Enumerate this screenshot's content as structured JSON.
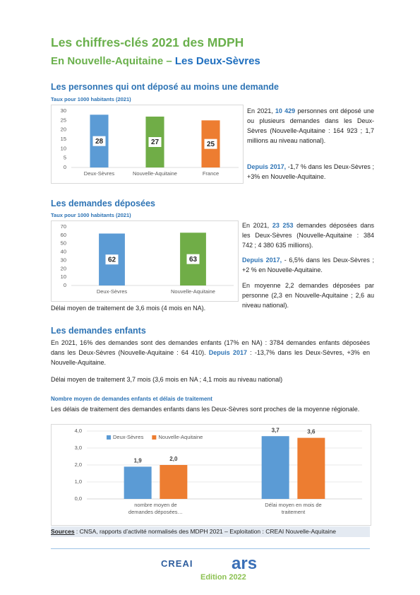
{
  "header": {
    "title": "Les chiffres-clés 2021 des MDPH",
    "subtitle": "En Nouvelle-Aquitaine –",
    "subtitle_highlight": "Les Deux-Sèvres"
  },
  "sections": [
    {
      "heading": "Les personnes qui ont déposé au moins une demande",
      "paragraphs": [
        [
          {
            "text": "En 2021, "
          },
          {
            "text": "10 429",
            "highlight": true
          },
          {
            "text": " personnes ont déposé une ou plusieurs demandes dans les Deux-Sèvres (Nouvelle-Aquitaine : 164 923 ; 1,7 millions au niveau national)."
          }
        ],
        [
          {
            "text": "Depuis 2017,",
            "highlight": true
          },
          {
            "text": " -1,7 % dans les Deux-Sèvres ; +3% en Nouvelle-Aquitaine."
          }
        ]
      ]
    },
    {
      "heading": "Les demandes déposées",
      "paragraphs": [
        [
          {
            "text": "En 2021, "
          },
          {
            "text": "23 253",
            "highlight": true
          },
          {
            "text": " demandes déposées dans les Deux-Sèvres (Nouvelle-Aquitaine : 384 742 ; 4 380 635 millions)."
          }
        ],
        [
          {
            "text": "Depuis 2017,",
            "highlight": true
          },
          {
            "text": " - 6,5% dans les Deux-Sèvres ; +2 % en Nouvelle-Aquitaine."
          }
        ],
        [
          {
            "text": "En moyenne 2,2 demandes déposées par personne (2,3 en Nouvelle-Aquitaine ; 2,6 au niveau national)."
          }
        ],
        [
          {
            "text": "Délai moyen de traitement de 3,6 mois (4 mois en NA)."
          }
        ]
      ]
    },
    {
      "heading": "Les demandes enfants",
      "paragraphs": [
        [
          {
            "text": "En 2021, 16% des demandes sont des demandes enfants (17% en NA) : 3784 demandes enfants déposées dans les Deux-Sèvres (Nouvelle-Aquitaine : 64 410). "
          },
          {
            "text": "Depuis 2017",
            "highlight": true
          },
          {
            "text": " : -13,7% dans les Deux-Sèvres, +3% en Nouvelle-Aquitaine."
          }
        ],
        [
          {
            "text": "Délai moyen de traitement 3,7 mois (3,6 mois en NA ; 4,1 mois au niveau national)"
          }
        ]
      ],
      "subheading": "Nombre moyen de demandes enfants et délais de traitement",
      "note": "Les délais de traitement des demandes enfants dans les Deux-Sèvres sont proches de la moyenne régionale."
    }
  ],
  "chart_data": [
    {
      "type": "bar",
      "title": "Taux pour 1000 habitants (2021)",
      "categories": [
        "Deux-Sèvres",
        "Nouvelle-Aquitaine",
        "France"
      ],
      "values": [
        28,
        27,
        25
      ],
      "colors": [
        "#5b9bd5",
        "#70ad47",
        "#ed7d31"
      ],
      "ylim": [
        0,
        30
      ],
      "yticks": [
        0,
        5,
        10,
        15,
        20,
        25,
        30
      ],
      "grid": false,
      "data_labels": "inside"
    },
    {
      "type": "bar",
      "title": "Taux pour 1000 habitants (2021)",
      "categories": [
        "Deux-Sèvres",
        "Nouvelle-Aquitaine"
      ],
      "values": [
        62,
        63
      ],
      "colors": [
        "#5b9bd5",
        "#70ad47"
      ],
      "ylim": [
        0,
        70
      ],
      "yticks": [
        0,
        10,
        20,
        30,
        40,
        50,
        60,
        70
      ],
      "grid": false,
      "data_labels": "inside"
    },
    {
      "type": "bar",
      "categories": [
        "nombre moyen de demandes déposées…",
        "Délai moyen en mois de traitement"
      ],
      "series": [
        {
          "name": "Deux-Sèvres",
          "color": "#5b9bd5",
          "values": [
            1.9,
            3.7
          ],
          "value_labels": [
            "1,9",
            "3,7"
          ]
        },
        {
          "name": "Nouvelle-Aquitaine",
          "color": "#ed7d31",
          "values": [
            2.0,
            3.6
          ],
          "value_labels": [
            "2,0",
            "3,6"
          ]
        }
      ],
      "ylim": [
        0,
        4
      ],
      "yticks": [
        {
          "value": 0,
          "label": "0,0"
        },
        {
          "value": 1,
          "label": "1,0"
        },
        {
          "value": 2,
          "label": "2,0"
        },
        {
          "value": 3,
          "label": "3,0"
        },
        {
          "value": 4,
          "label": "4,0"
        }
      ],
      "grid": true,
      "legend": "top-left",
      "data_labels": "above"
    }
  ],
  "sources": {
    "label": "Sources",
    "text": " : CNSA, rapports d’activité normalisés des MDPH 2021 – Exploitation : CREAI Nouvelle-Aquitaine"
  },
  "footer": {
    "edition": "Edition 2022",
    "logos": [
      "CREAI",
      "ars"
    ]
  }
}
